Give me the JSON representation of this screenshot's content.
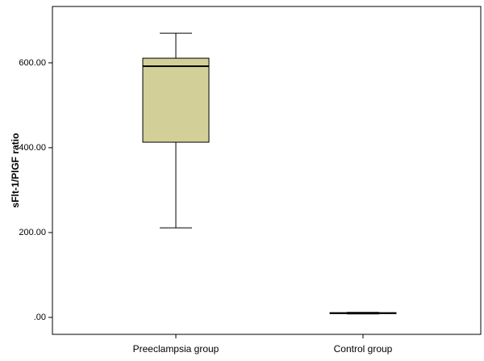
{
  "chart_data": {
    "type": "box",
    "y_label": "sFlt-1/PlGF ratio",
    "categories": [
      "Preeclampsia group",
      "Control group"
    ],
    "min": [
      211,
      8
    ],
    "q1": [
      413,
      9
    ],
    "median": [
      592,
      10
    ],
    "q3": [
      611,
      11
    ],
    "max": [
      670,
      12
    ],
    "color": "#d3cf98",
    "ylim": [
      -40,
      733
    ],
    "yticks": [
      {
        "value": 0,
        "label": ".00"
      },
      {
        "value": 200,
        "label": "200.00"
      },
      {
        "value": 400,
        "label": "400.00"
      },
      {
        "value": 600,
        "label": "600.00"
      }
    ]
  }
}
